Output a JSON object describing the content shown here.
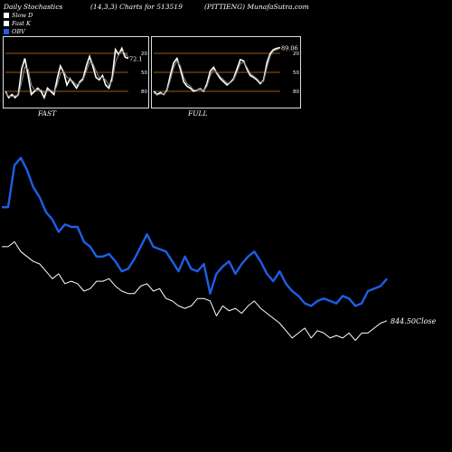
{
  "header": {
    "left": "Daily Stochastics",
    "center": "(14,3,3) Charts for 513519",
    "right": "(PITTIENG) MunafaSutra.com"
  },
  "legend": [
    {
      "label": "Slow  D",
      "color": "#ffffff"
    },
    {
      "label": "Fast K",
      "color": "#ffffff"
    },
    {
      "label": "OBV",
      "color": "#1e5ee8"
    }
  ],
  "colors": {
    "obv": "#1e5ee8",
    "close": "#ffffff",
    "levels": "#c8781e"
  },
  "chart_data": [
    {
      "type": "line",
      "panel_label": "FAST",
      "last_value_label": "72.1",
      "ylim": [
        0,
        100
      ],
      "level_lines": [
        20,
        50,
        80
      ],
      "tick_labels": [
        "80",
        "50",
        "20"
      ],
      "series": [
        {
          "values": [
            20,
            10,
            15,
            10,
            15,
            55,
            72,
            45,
            15,
            20,
            25,
            20,
            10,
            25,
            20,
            15,
            40,
            60,
            50,
            30,
            40,
            32,
            25,
            35,
            40,
            60,
            75,
            60,
            42,
            38,
            45,
            30,
            25,
            42,
            86,
            78,
            88,
            74,
            72
          ]
        },
        {
          "values": [
            18,
            12,
            12,
            13,
            13,
            35,
            58,
            55,
            30,
            22,
            22,
            22,
            18,
            20,
            22,
            18,
            30,
            48,
            52,
            42,
            40,
            35,
            30,
            33,
            38,
            52,
            66,
            64,
            52,
            42,
            42,
            38,
            30,
            36,
            66,
            78,
            84,
            80,
            74
          ]
        }
      ]
    },
    {
      "type": "line",
      "panel_label": "FULL",
      "last_value_label": "89.06",
      "ylim": [
        0,
        100
      ],
      "level_lines": [
        20,
        50,
        80
      ],
      "tick_labels": [
        "80",
        "50",
        "20"
      ],
      "series": [
        {
          "values": [
            20,
            15,
            18,
            15,
            22,
            45,
            65,
            72,
            55,
            35,
            28,
            25,
            20,
            22,
            24,
            20,
            32,
            52,
            58,
            48,
            40,
            35,
            30,
            34,
            40,
            55,
            70,
            68,
            55,
            45,
            42,
            38,
            32,
            38,
            65,
            80,
            86,
            88,
            89
          ]
        },
        {
          "values": [
            18,
            14,
            16,
            16,
            20,
            38,
            58,
            68,
            60,
            42,
            32,
            28,
            22,
            22,
            23,
            21,
            28,
            45,
            54,
            50,
            43,
            38,
            33,
            33,
            38,
            50,
            64,
            66,
            58,
            48,
            44,
            40,
            34,
            36,
            58,
            76,
            84,
            86,
            88
          ]
        }
      ]
    },
    {
      "type": "line",
      "close_label": "844.50Close",
      "series": [
        {
          "values": [
            0.71,
            0.71,
            0.88,
            0.91,
            0.86,
            0.79,
            0.75,
            0.69,
            0.66,
            0.61,
            0.64,
            0.63,
            0.63,
            0.57,
            0.55,
            0.51,
            0.51,
            0.52,
            0.49,
            0.45,
            0.46,
            0.5,
            0.55,
            0.6,
            0.55,
            0.54,
            0.53,
            0.49,
            0.45,
            0.51,
            0.46,
            0.45,
            0.48,
            0.36,
            0.44,
            0.47,
            0.49,
            0.44,
            0.48,
            0.51,
            0.53,
            0.49,
            0.44,
            0.41,
            0.45,
            0.4,
            0.37,
            0.35,
            0.32,
            0.31,
            0.33,
            0.34,
            0.33,
            0.32,
            0.35,
            0.34,
            0.31,
            0.32,
            0.37,
            0.38,
            0.39,
            0.42
          ]
        },
        {
          "values": [
            0.55,
            0.55,
            0.57,
            0.53,
            0.51,
            0.49,
            0.48,
            0.45,
            0.42,
            0.44,
            0.4,
            0.41,
            0.4,
            0.37,
            0.38,
            0.41,
            0.41,
            0.42,
            0.39,
            0.37,
            0.36,
            0.36,
            0.39,
            0.4,
            0.37,
            0.38,
            0.34,
            0.33,
            0.31,
            0.3,
            0.31,
            0.34,
            0.34,
            0.33,
            0.27,
            0.31,
            0.29,
            0.3,
            0.28,
            0.31,
            0.33,
            0.3,
            0.28,
            0.26,
            0.24,
            0.21,
            0.18,
            0.2,
            0.22,
            0.18,
            0.21,
            0.2,
            0.18,
            0.19,
            0.18,
            0.2,
            0.17,
            0.2,
            0.2,
            0.22,
            0.24,
            0.25
          ]
        }
      ]
    }
  ]
}
